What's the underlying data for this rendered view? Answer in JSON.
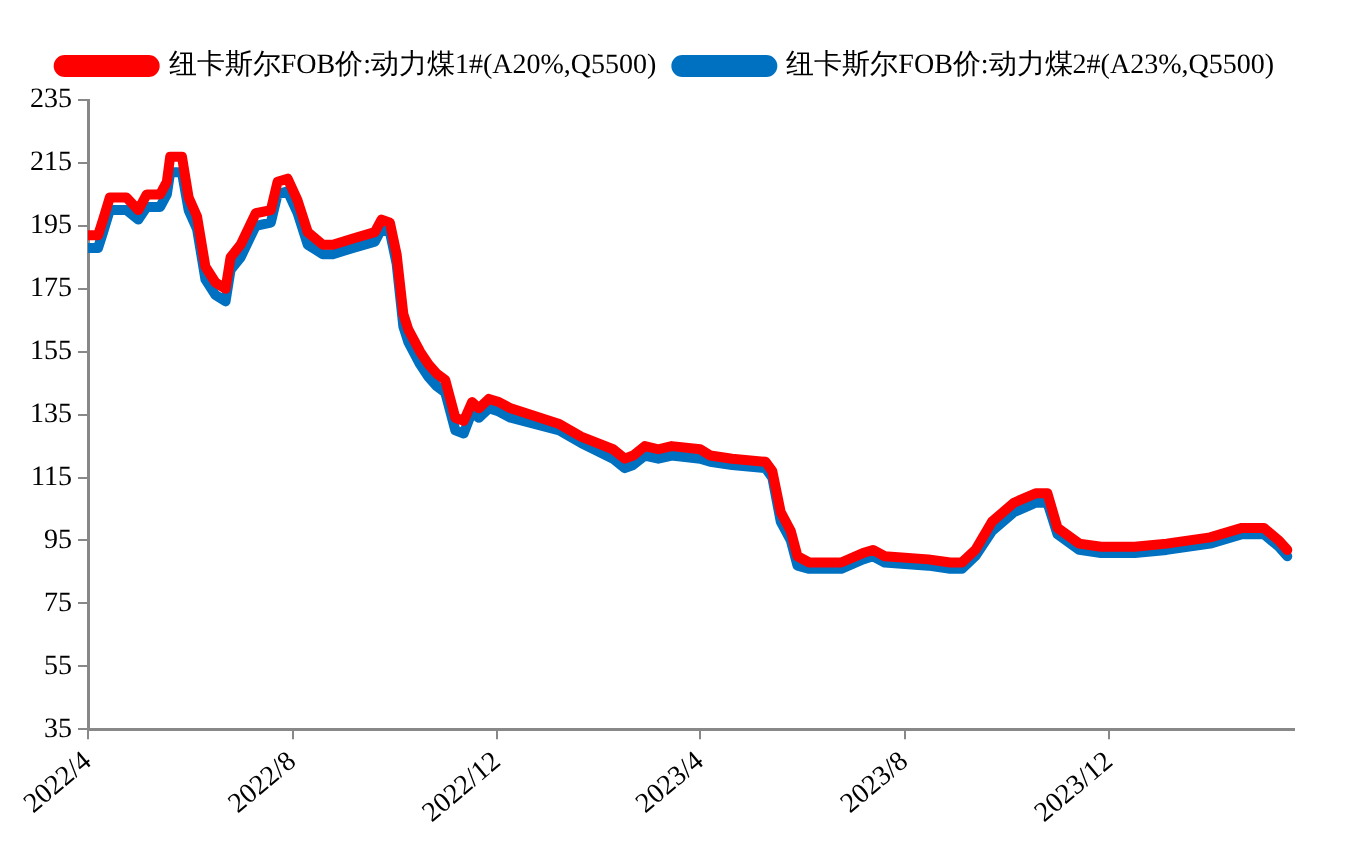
{
  "chart_data": {
    "type": "line",
    "legend": "top right",
    "grid": false,
    "marker": "none",
    "line_style": "solid",
    "xlim": [
      "2022-04-01",
      "2024-03-20"
    ],
    "xticks": [
      {
        "value": "2022-04-01",
        "label": "2022/4"
      },
      {
        "value": "2022-08-01",
        "label": "2022/8"
      },
      {
        "value": "2022-12-01",
        "label": "2022/12"
      },
      {
        "value": "2023-04-01",
        "label": "2023/4"
      },
      {
        "value": "2023-08-01",
        "label": "2023/8"
      },
      {
        "value": "2023-12-01",
        "label": "2023/12"
      }
    ],
    "ylim": [
      35,
      235
    ],
    "yticks": [
      35,
      55,
      75,
      95,
      115,
      135,
      155,
      175,
      195,
      215,
      235
    ],
    "x": [
      "2022-04-01",
      "2022-04-07",
      "2022-04-10",
      "2022-04-14",
      "2022-04-24",
      "2022-05-01",
      "2022-05-06",
      "2022-05-14",
      "2022-05-18",
      "2022-05-20",
      "2022-05-27",
      "2022-05-31",
      "2022-06-05",
      "2022-06-10",
      "2022-06-16",
      "2022-06-22",
      "2022-06-25",
      "2022-07-01",
      "2022-07-10",
      "2022-07-19",
      "2022-07-23",
      "2022-07-29",
      "2022-08-04",
      "2022-08-10",
      "2022-08-19",
      "2022-08-25",
      "2022-09-06",
      "2022-09-19",
      "2022-09-23",
      "2022-09-28",
      "2022-10-02",
      "2022-10-06",
      "2022-10-09",
      "2022-10-16",
      "2022-10-21",
      "2022-10-26",
      "2022-10-31",
      "2022-11-06",
      "2022-11-11",
      "2022-11-16",
      "2022-11-20",
      "2022-11-26",
      "2022-12-02",
      "2022-12-09",
      "2023-01-07",
      "2023-01-20",
      "2023-02-08",
      "2023-02-15",
      "2023-02-20",
      "2023-02-27",
      "2023-03-07",
      "2023-03-15",
      "2023-04-01",
      "2023-04-07",
      "2023-04-20",
      "2023-05-10",
      "2023-05-14",
      "2023-05-19",
      "2023-05-25",
      "2023-05-29",
      "2023-06-05",
      "2023-06-24",
      "2023-07-07",
      "2023-07-13",
      "2023-07-20",
      "2023-08-15",
      "2023-08-28",
      "2023-09-04",
      "2023-09-12",
      "2023-09-22",
      "2023-10-05",
      "2023-10-18",
      "2023-10-25",
      "2023-10-31",
      "2023-11-13",
      "2023-11-26",
      "2023-12-16",
      "2024-01-04",
      "2024-01-30",
      "2024-02-18",
      "2024-03-02",
      "2024-03-11",
      "2024-03-16"
    ],
    "series": [
      {
        "name": "纽卡斯尔FOB价:动力煤1#(A20%,Q5500)",
        "color": "#ff0000",
        "values": [
          192,
          192,
          197,
          204,
          204,
          200,
          205,
          205,
          209,
          217,
          217,
          204,
          198,
          182,
          177,
          175,
          185,
          189,
          199,
          200,
          209,
          210,
          203,
          193,
          189,
          189,
          191,
          193,
          197,
          196,
          186,
          167,
          162,
          155,
          151,
          148,
          146,
          134,
          133,
          139,
          137,
          140,
          139,
          137,
          132,
          128,
          124,
          121,
          122,
          125,
          124,
          125,
          124,
          122,
          121,
          120,
          117,
          104,
          98,
          90,
          88,
          88,
          91,
          92,
          90,
          89,
          88,
          88,
          92,
          101,
          107,
          110,
          110,
          99,
          94,
          93,
          93,
          94,
          96,
          99,
          99,
          95,
          92
        ]
      },
      {
        "name": "纽卡斯尔FOB价:动力煤2#(A23%,Q5500)",
        "color": "#0070c0",
        "values": [
          188,
          188,
          193,
          200,
          200,
          197,
          201,
          201,
          205,
          212,
          212,
          200,
          194,
          178,
          173,
          171,
          181,
          185,
          195,
          196,
          205,
          206,
          199,
          189,
          186,
          186,
          188,
          190,
          194,
          193,
          183,
          163,
          158,
          151,
          147,
          144,
          142,
          130,
          129,
          136,
          134,
          137,
          136,
          134,
          130,
          126,
          121,
          118,
          119,
          122,
          121,
          122,
          121,
          120,
          119,
          118,
          115,
          101,
          95,
          87,
          86,
          86,
          89,
          90,
          88,
          87,
          86,
          86,
          90,
          98,
          104,
          107,
          107,
          97,
          92,
          91,
          91,
          92,
          94,
          97,
          97,
          93,
          90
        ]
      }
    ]
  }
}
